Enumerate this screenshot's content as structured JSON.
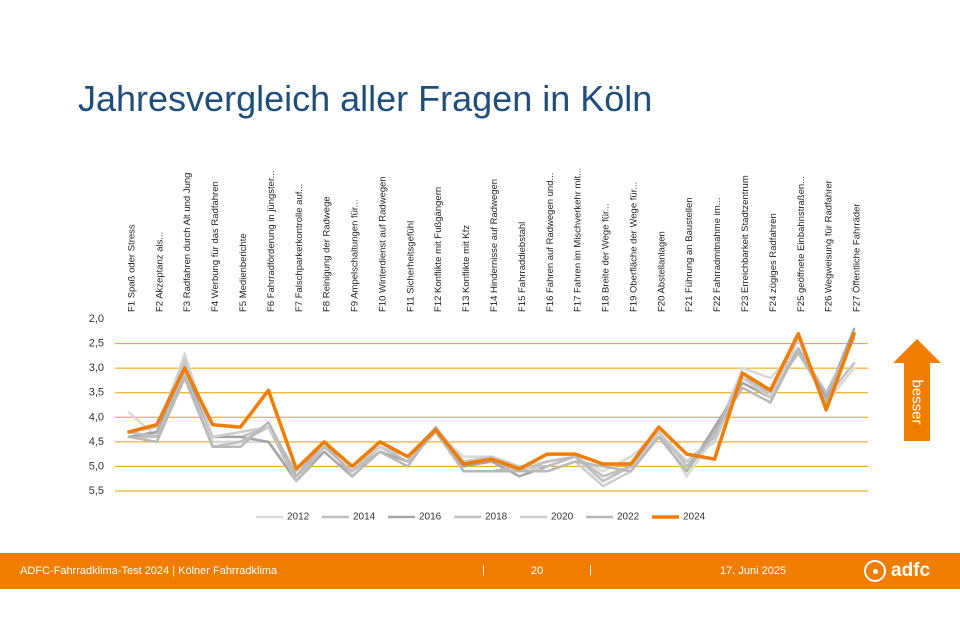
{
  "slide": {
    "title": "Jahresvergleich aller Fragen in Köln",
    "arrow_label": "besser"
  },
  "footer": {
    "left_text": "ADFC-Fahrradklima-Test 2024 | Kölner Fahrradklima",
    "separator": "|",
    "page_number": "20",
    "date": "17. Juni 2025",
    "logo_text": "adfc"
  },
  "colors": {
    "orange": "#f07d00",
    "title_blue": "#1f4e79",
    "grid": "#e8a000"
  },
  "chart_data": {
    "type": "line",
    "ylim": [
      2.0,
      5.5
    ],
    "y_reversed": true,
    "y_ticks": [
      "2,0",
      "2,5",
      "3,0",
      "3,5",
      "4,0",
      "4,5",
      "5,0",
      "5,5"
    ],
    "legend_position": "bottom",
    "categories": [
      "F1 Spaß oder Stress",
      "F2 Akzeptanz als...",
      "F3 Radfahren durch Alt und Jung",
      "F4 Werbung für das Radfahren",
      "F5 Medienberichte",
      "F6 Fahrradförderung in jüngster...",
      "F7 Falschparkerkontrolle auf...",
      "F8 Reinigung der Radwege",
      "F9 Ampelschaltungen für...",
      "F10 Winterdienst auf Radwegen",
      "F11 Sicherheitsgefühl",
      "F12 Konflikte mit Fußgängern",
      "F13 Konflikte mit Kfz",
      "F14 Hindernisse auf Radwegen",
      "F15 Fahrraddiebstahl",
      "F16 Fahren auf Radwegen und...",
      "F17 Fahren im Mischverkehr mit...",
      "F18 Breite der Wege für...",
      "F19 Oberfläche der Wege für...",
      "F20 Abstellanlagen",
      "F21 Führung an Baustellen",
      "F22 Fahrradmitnahme im...",
      "F23 Erreichbarkeit Stadtzentrum",
      "F24 zügiges Radfahren",
      "F25 geöffnete Einbahnstraßen...",
      "F26 Wegweisung für Radfahrer",
      "F27 Öffentliche Fahrräder"
    ],
    "series": [
      {
        "name": "2012",
        "color": "#d9d9d9",
        "width": 2.5,
        "values": [
          3.9,
          4.4,
          2.7,
          4.5,
          4.5,
          4.5,
          5.2,
          4.6,
          5.1,
          4.6,
          4.9,
          4.3,
          4.8,
          4.8,
          5.0,
          4.9,
          4.8,
          5.1,
          4.8,
          4.3,
          5.2,
          4.4,
          3.0,
          3.2,
          2.6,
          3.7,
          3.0
        ]
      },
      {
        "name": "2014",
        "color": "#c0c0c0",
        "width": 2.5,
        "values": [
          4.4,
          4.4,
          2.9,
          4.4,
          4.4,
          4.2,
          5.2,
          4.6,
          5.1,
          4.7,
          4.9,
          4.3,
          4.9,
          4.9,
          5.1,
          4.9,
          4.8,
          5.2,
          5.0,
          4.3,
          5.0,
          4.3,
          3.2,
          3.5,
          2.7,
          3.6,
          2.9
        ]
      },
      {
        "name": "2016",
        "color": "#a6a6a6",
        "width": 2.5,
        "values": [
          4.4,
          4.3,
          3.0,
          4.4,
          4.4,
          4.5,
          5.3,
          4.7,
          5.2,
          4.7,
          4.9,
          4.3,
          5.0,
          4.9,
          5.2,
          5.0,
          4.8,
          5.3,
          5.0,
          4.4,
          5.1,
          4.2,
          3.3,
          3.6,
          2.6,
          3.6,
          2.2
        ]
      },
      {
        "name": "2018",
        "color": "#bfbfbf",
        "width": 2.5,
        "values": [
          4.3,
          4.4,
          3.1,
          4.6,
          4.5,
          4.2,
          5.3,
          4.6,
          5.1,
          4.6,
          4.9,
          4.3,
          5.1,
          5.1,
          5.0,
          5.0,
          4.8,
          5.3,
          5.0,
          4.4,
          4.9,
          4.4,
          3.1,
          3.6,
          2.6,
          3.5,
          2.4
        ]
      },
      {
        "name": "2020",
        "color": "#cccccc",
        "width": 2.5,
        "values": [
          4.3,
          4.2,
          2.8,
          4.4,
          4.3,
          4.2,
          5.1,
          4.5,
          5.0,
          4.6,
          4.8,
          4.2,
          4.9,
          4.8,
          5.0,
          5.1,
          4.9,
          5.4,
          5.1,
          4.3,
          4.9,
          4.5,
          3.2,
          3.6,
          2.4,
          3.8,
          2.3
        ]
      },
      {
        "name": "2022",
        "color": "#b8b8b8",
        "width": 2.5,
        "values": [
          4.4,
          4.5,
          3.2,
          4.6,
          4.6,
          4.1,
          5.2,
          4.5,
          5.2,
          4.7,
          5.0,
          4.2,
          5.1,
          5.1,
          5.1,
          5.1,
          4.9,
          5.0,
          5.1,
          4.4,
          5.1,
          4.3,
          3.4,
          3.7,
          2.6,
          3.7,
          2.3
        ]
      },
      {
        "name": "2024",
        "color": "#f07d00",
        "width": 3.5,
        "values": [
          4.3,
          4.15,
          3.0,
          4.15,
          4.2,
          3.45,
          5.05,
          4.5,
          5.0,
          4.5,
          4.8,
          4.25,
          4.95,
          4.85,
          5.05,
          4.75,
          4.75,
          4.95,
          4.95,
          4.2,
          4.75,
          4.85,
          3.1,
          3.45,
          2.3,
          3.85,
          2.3
        ]
      }
    ]
  }
}
